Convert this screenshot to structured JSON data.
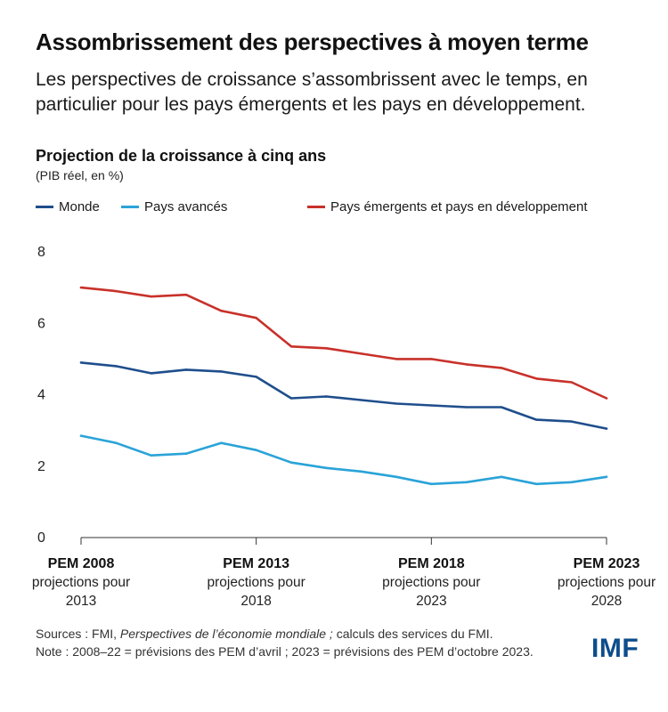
{
  "header": {
    "title": "Assombrissement des perspectives à moyen terme",
    "subtitle": "Les perspectives de croissance s’assombrissent avec le temps, en particulier pour les pays émergents et les pays en développement."
  },
  "chart_data": {
    "type": "line",
    "title": "Projection de la croissance à cinq ans",
    "ylabel": "(PIB réel, en %)",
    "xlabel": "",
    "ylim": [
      0,
      8
    ],
    "yticks": [
      0,
      2,
      4,
      6,
      8
    ],
    "grid": false,
    "legend_position": "top",
    "x": [
      2008,
      2009,
      2010,
      2011,
      2012,
      2013,
      2014,
      2015,
      2016,
      2017,
      2018,
      2019,
      2020,
      2021,
      2022,
      2023
    ],
    "x_tick_positions": [
      2008,
      2013,
      2018,
      2023
    ],
    "x_tick_labels": [
      {
        "edition": "PEM 2008",
        "line1": "projections pour",
        "line2": "2013"
      },
      {
        "edition": "PEM 2013",
        "line1": "projections pour",
        "line2": "2018"
      },
      {
        "edition": "PEM 2018",
        "line1": "projections pour",
        "line2": "2023"
      },
      {
        "edition": "PEM 2023",
        "line1": "projections pour",
        "line2": "2028"
      }
    ],
    "series": [
      {
        "name": "Monde",
        "color": "#1f4e8c",
        "values": [
          4.9,
          4.8,
          4.6,
          4.7,
          4.65,
          4.5,
          3.9,
          3.95,
          3.85,
          3.75,
          3.7,
          3.65,
          3.65,
          3.3,
          3.25,
          3.05
        ]
      },
      {
        "name": "Pays avancés",
        "color": "#2aa3d8",
        "values": [
          2.85,
          2.65,
          2.3,
          2.35,
          2.65,
          2.45,
          2.1,
          1.95,
          1.85,
          1.7,
          1.5,
          1.55,
          1.7,
          1.5,
          1.55,
          1.7
        ]
      },
      {
        "name": "Pays émergents et pays en développement",
        "color": "#c8312a",
        "values": [
          7.0,
          6.9,
          6.75,
          6.8,
          6.35,
          6.15,
          5.35,
          5.3,
          5.15,
          5.0,
          5.0,
          4.85,
          4.75,
          4.45,
          4.35,
          3.9
        ]
      }
    ]
  },
  "footer": {
    "sources_prefix": "Sources : FMI, ",
    "sources_italic": "Perspectives de l’économie mondiale ;",
    "sources_suffix": " calculs des services du FMI.",
    "note": "Note : 2008–22 = prévisions des PEM d’avril ; 2023 = prévisions des PEM d’octobre 2023."
  },
  "logo": {
    "text": "IMF"
  }
}
